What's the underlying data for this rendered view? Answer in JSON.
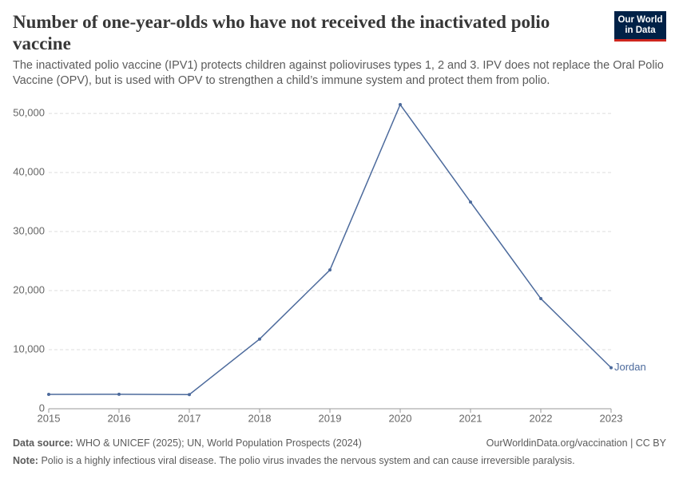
{
  "header": {
    "title": "Number of one-year-olds who have not received the inactivated polio vaccine",
    "subtitle": "The inactivated polio vaccine (IPV1) protects children against polioviruses types 1, 2 and 3. IPV does not replace the Oral Polio Vaccine (OPV), but is used with OPV to strengthen a child’s immune system and protect them from polio.",
    "logo": [
      "Our World",
      "in Data"
    ]
  },
  "chart_data": {
    "type": "line",
    "x": [
      2015,
      2016,
      2017,
      2018,
      2019,
      2020,
      2021,
      2022,
      2023
    ],
    "series": [
      {
        "name": "Jordan",
        "color": "#4c6a9c",
        "values": [
          2430,
          2450,
          2400,
          11800,
          23500,
          51500,
          35000,
          18650,
          6950
        ]
      }
    ],
    "xlim": [
      2015,
      2023
    ],
    "xticks": [
      2015,
      2016,
      2017,
      2018,
      2019,
      2020,
      2021,
      2022,
      2023
    ],
    "ylim": [
      0,
      51500
    ],
    "yticks": [
      0,
      {
        "value": 10000,
        "label": "10,000"
      },
      {
        "value": 20000,
        "label": "20,000"
      },
      {
        "value": 30000,
        "label": "30,000"
      },
      {
        "value": 40000,
        "label": "40,000"
      },
      {
        "value": 50000,
        "label": "50,000"
      }
    ],
    "grid": true
  },
  "footer": {
    "source_label": "Data source:",
    "source": "WHO & UNICEF (2025); UN, World Population Prospects (2024)",
    "url": "OurWorldinData.org/vaccination | CC BY",
    "note_label": "Note:",
    "note": "Polio is a highly infectious viral disease. The polio virus invades the nervous system and can cause irreversible paralysis."
  }
}
